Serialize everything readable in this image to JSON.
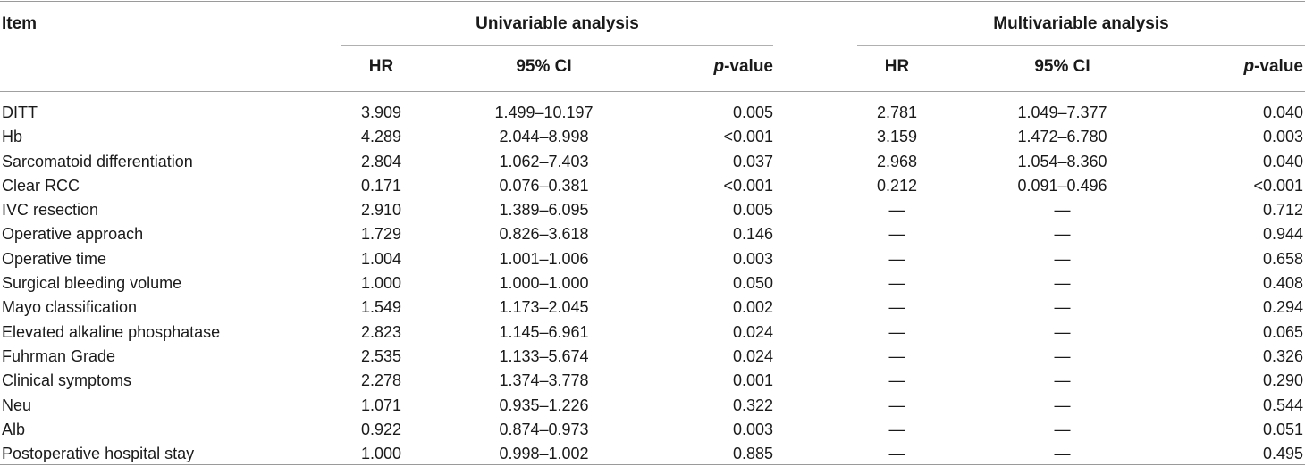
{
  "table": {
    "header": {
      "item": "Item",
      "univariable": "Univariable analysis",
      "multivariable": "Multivariable analysis",
      "hr": "HR",
      "ci": "95% CI",
      "p_italic": "p",
      "p_rest": "-value"
    },
    "rows": [
      {
        "item": "DITT",
        "u_hr": "3.909",
        "u_ci": "1.499–10.197",
        "u_p": "0.005",
        "m_hr": "2.781",
        "m_ci": "1.049–7.377",
        "m_p": "0.040"
      },
      {
        "item": "Hb",
        "u_hr": "4.289",
        "u_ci": "2.044–8.998",
        "u_p": "<0.001",
        "m_hr": "3.159",
        "m_ci": "1.472–6.780",
        "m_p": "0.003"
      },
      {
        "item": "Sarcomatoid differentiation",
        "u_hr": "2.804",
        "u_ci": "1.062–7.403",
        "u_p": "0.037",
        "m_hr": "2.968",
        "m_ci": "1.054–8.360",
        "m_p": "0.040"
      },
      {
        "item": "Clear RCC",
        "u_hr": "0.171",
        "u_ci": "0.076–0.381",
        "u_p": "<0.001",
        "m_hr": "0.212",
        "m_ci": "0.091–0.496",
        "m_p": "<0.001"
      },
      {
        "item": "IVC resection",
        "u_hr": "2.910",
        "u_ci": "1.389–6.095",
        "u_p": "0.005",
        "m_hr": "—",
        "m_ci": "—",
        "m_p": "0.712"
      },
      {
        "item": "Operative approach",
        "u_hr": "1.729",
        "u_ci": "0.826–3.618",
        "u_p": "0.146",
        "m_hr": "—",
        "m_ci": "—",
        "m_p": "0.944"
      },
      {
        "item": "Operative time",
        "u_hr": "1.004",
        "u_ci": "1.001–1.006",
        "u_p": "0.003",
        "m_hr": "—",
        "m_ci": "—",
        "m_p": "0.658"
      },
      {
        "item": "Surgical bleeding volume",
        "u_hr": "1.000",
        "u_ci": "1.000–1.000",
        "u_p": "0.050",
        "m_hr": "—",
        "m_ci": "—",
        "m_p": "0.408"
      },
      {
        "item": "Mayo classification",
        "u_hr": "1.549",
        "u_ci": "1.173–2.045",
        "u_p": "0.002",
        "m_hr": "—",
        "m_ci": "—",
        "m_p": "0.294"
      },
      {
        "item": "Elevated alkaline phosphatase",
        "u_hr": "2.823",
        "u_ci": "1.145–6.961",
        "u_p": "0.024",
        "m_hr": "—",
        "m_ci": "—",
        "m_p": "0.065"
      },
      {
        "item": "Fuhrman Grade",
        "u_hr": "2.535",
        "u_ci": "1.133–5.674",
        "u_p": "0.024",
        "m_hr": "—",
        "m_ci": "—",
        "m_p": "0.326"
      },
      {
        "item": "Clinical symptoms",
        "u_hr": "2.278",
        "u_ci": "1.374–3.778",
        "u_p": "0.001",
        "m_hr": "—",
        "m_ci": "—",
        "m_p": "0.290"
      },
      {
        "item": "Neu",
        "u_hr": "1.071",
        "u_ci": "0.935–1.226",
        "u_p": "0.322",
        "m_hr": "—",
        "m_ci": "—",
        "m_p": "0.544"
      },
      {
        "item": "Alb",
        "u_hr": "0.922",
        "u_ci": "0.874–0.973",
        "u_p": "0.003",
        "m_hr": "—",
        "m_ci": "—",
        "m_p": "0.051"
      },
      {
        "item": "Postoperative hospital stay",
        "u_hr": "1.000",
        "u_ci": "0.998–1.002",
        "u_p": "0.885",
        "m_hr": "—",
        "m_ci": "—",
        "m_p": "0.495"
      }
    ]
  }
}
